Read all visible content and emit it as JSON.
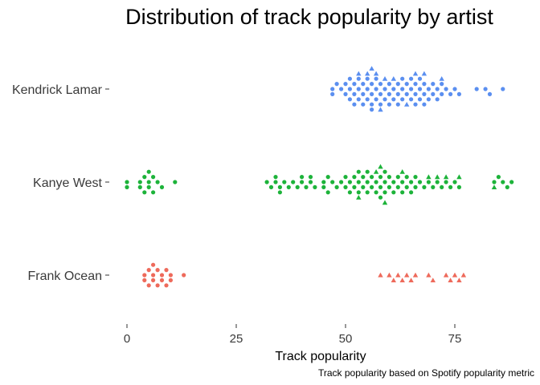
{
  "chart_data": {
    "type": "scatter",
    "subtype": "beeswarm",
    "title": "Distribution of track popularity by artist",
    "xlabel": "Track popularity",
    "ylabel": "",
    "caption": "Track popularity based on Spotify popularity metric",
    "xlim": [
      0,
      90
    ],
    "xticks": [
      0,
      25,
      50,
      75
    ],
    "categories": [
      "Kendrick Lamar",
      "Kanye West",
      "Frank Ocean"
    ],
    "grid": false,
    "legend": "none",
    "series": [
      {
        "category": "Kendrick Lamar",
        "color": "#5b8ff0",
        "circles": [
          47,
          47,
          48,
          49,
          50,
          50,
          51,
          51,
          51,
          52,
          52,
          52,
          53,
          53,
          53,
          54,
          54,
          54,
          55,
          55,
          55,
          56,
          56,
          56,
          56,
          57,
          57,
          57,
          58,
          58,
          58,
          59,
          59,
          60,
          60,
          60,
          61,
          61,
          62,
          62,
          62,
          63,
          63,
          63,
          64,
          64,
          65,
          65,
          65,
          66,
          66,
          66,
          67,
          67,
          67,
          68,
          68,
          68,
          69,
          69,
          70,
          70,
          71,
          71,
          72,
          72,
          73,
          74,
          75,
          76,
          80,
          82,
          83,
          86
        ],
        "triangles": [
          53,
          55,
          56,
          57,
          58,
          59,
          61,
          64,
          66,
          68,
          72
        ]
      },
      {
        "category": "Kanye West",
        "color": "#1db33a",
        "circles": [
          0,
          0,
          3,
          3,
          4,
          4,
          5,
          5,
          5,
          6,
          6,
          7,
          8,
          11,
          32,
          33,
          34,
          34,
          35,
          35,
          36,
          37,
          38,
          39,
          40,
          40,
          41,
          42,
          42,
          43,
          45,
          45,
          46,
          46,
          47,
          48,
          49,
          50,
          50,
          51,
          51,
          52,
          52,
          53,
          53,
          53,
          54,
          54,
          55,
          55,
          55,
          56,
          56,
          57,
          57,
          58,
          58,
          58,
          59,
          59,
          59,
          60,
          60,
          61,
          61,
          62,
          62,
          63,
          63,
          64,
          64,
          65,
          65,
          66,
          66,
          67,
          68,
          69,
          70,
          71,
          72,
          73,
          74,
          75,
          76,
          84,
          85,
          86,
          87,
          88
        ],
        "triangles": [
          53,
          57,
          58,
          59,
          63,
          69,
          71,
          73,
          76,
          84
        ]
      },
      {
        "category": "Frank Ocean",
        "color": "#ee6a5b",
        "circles": [
          4,
          4,
          5,
          5,
          6,
          6,
          6,
          7,
          7,
          8,
          8,
          9,
          9,
          10,
          10,
          13
        ],
        "triangles": [
          58,
          60,
          61,
          62,
          63,
          64,
          65,
          66,
          69,
          70,
          73,
          74,
          75,
          76,
          77
        ]
      }
    ]
  }
}
